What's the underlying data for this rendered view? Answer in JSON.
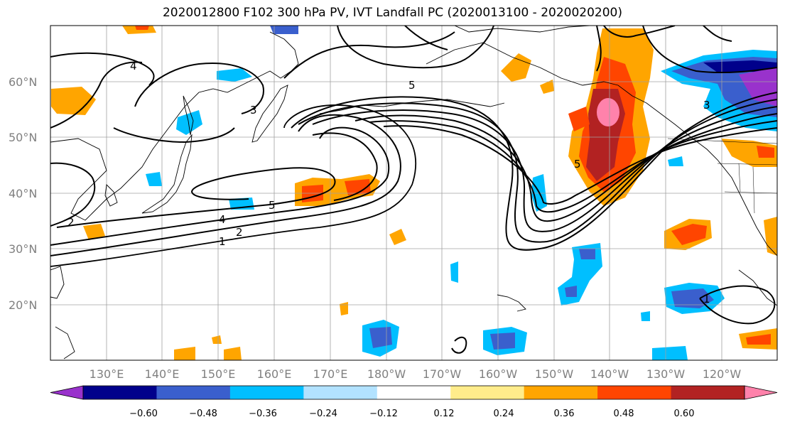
{
  "title": "2020012800 F102 300 hPa PV, IVT Landfall PC (2020013100 - 2020020200)",
  "lat_ticks": [
    "60°N",
    "50°N",
    "40°N",
    "30°N",
    "20°N"
  ],
  "lon_ticks": [
    "130°E",
    "140°E",
    "150°E",
    "160°E",
    "170°E",
    "180°W",
    "170°W",
    "160°W",
    "150°W",
    "140°W",
    "130°W",
    "120°W"
  ],
  "colorbar": {
    "colors": [
      "#9932cc",
      "#00008b",
      "#3a5fcd",
      "#00bfff",
      "#b2e2ff",
      "#ffffff",
      "#ffec8b",
      "#ffa500",
      "#ff4500",
      "#b22222",
      "#ff82ab"
    ],
    "ticks": [
      "−0.60",
      "−0.48",
      "−0.36",
      "−0.24",
      "−0.12",
      "0.12",
      "0.24",
      "0.36",
      "0.48",
      "0.60"
    ]
  },
  "contour_labels": [
    "4",
    "3",
    "5",
    "5",
    "4",
    "2",
    "1",
    "2",
    "5",
    "3",
    "1"
  ]
}
